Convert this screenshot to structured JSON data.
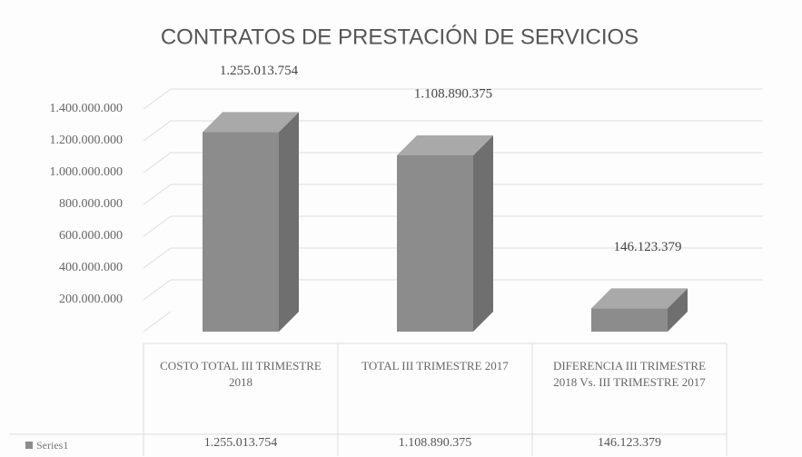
{
  "chart_data": {
    "type": "bar3d",
    "title": "CONTRATOS DE PRESTACIÓN DE SERVICIOS",
    "categories": [
      "COSTO TOTAL III TRIMESTRE 2018",
      "TOTAL III TRIMESTRE 2017",
      "DIFERENCIA III TRIMESTRE 2018 Vs. III TRIMESTRE 2017"
    ],
    "series": [
      {
        "name": "Series1",
        "color": "#8c8c8c",
        "values": [
          1255013754,
          1108890375,
          146123379
        ],
        "value_labels": [
          "1.255.013.754",
          "1.108.890.375",
          "146.123.379"
        ]
      }
    ],
    "ylim": [
      0,
      1400000000
    ],
    "yticks": [
      {
        "value": 200000000,
        "label": "200.000.000"
      },
      {
        "value": 400000000,
        "label": "400.000.000"
      },
      {
        "value": 600000000,
        "label": "600.000.000"
      },
      {
        "value": 800000000,
        "label": "800.000.000"
      },
      {
        "value": 1000000000,
        "label": "1.000.000.000"
      },
      {
        "value": 1200000000,
        "label": "1.200.000.000"
      },
      {
        "value": 1400000000,
        "label": "1.400.000.000"
      }
    ],
    "grid": true,
    "data_table": true
  }
}
